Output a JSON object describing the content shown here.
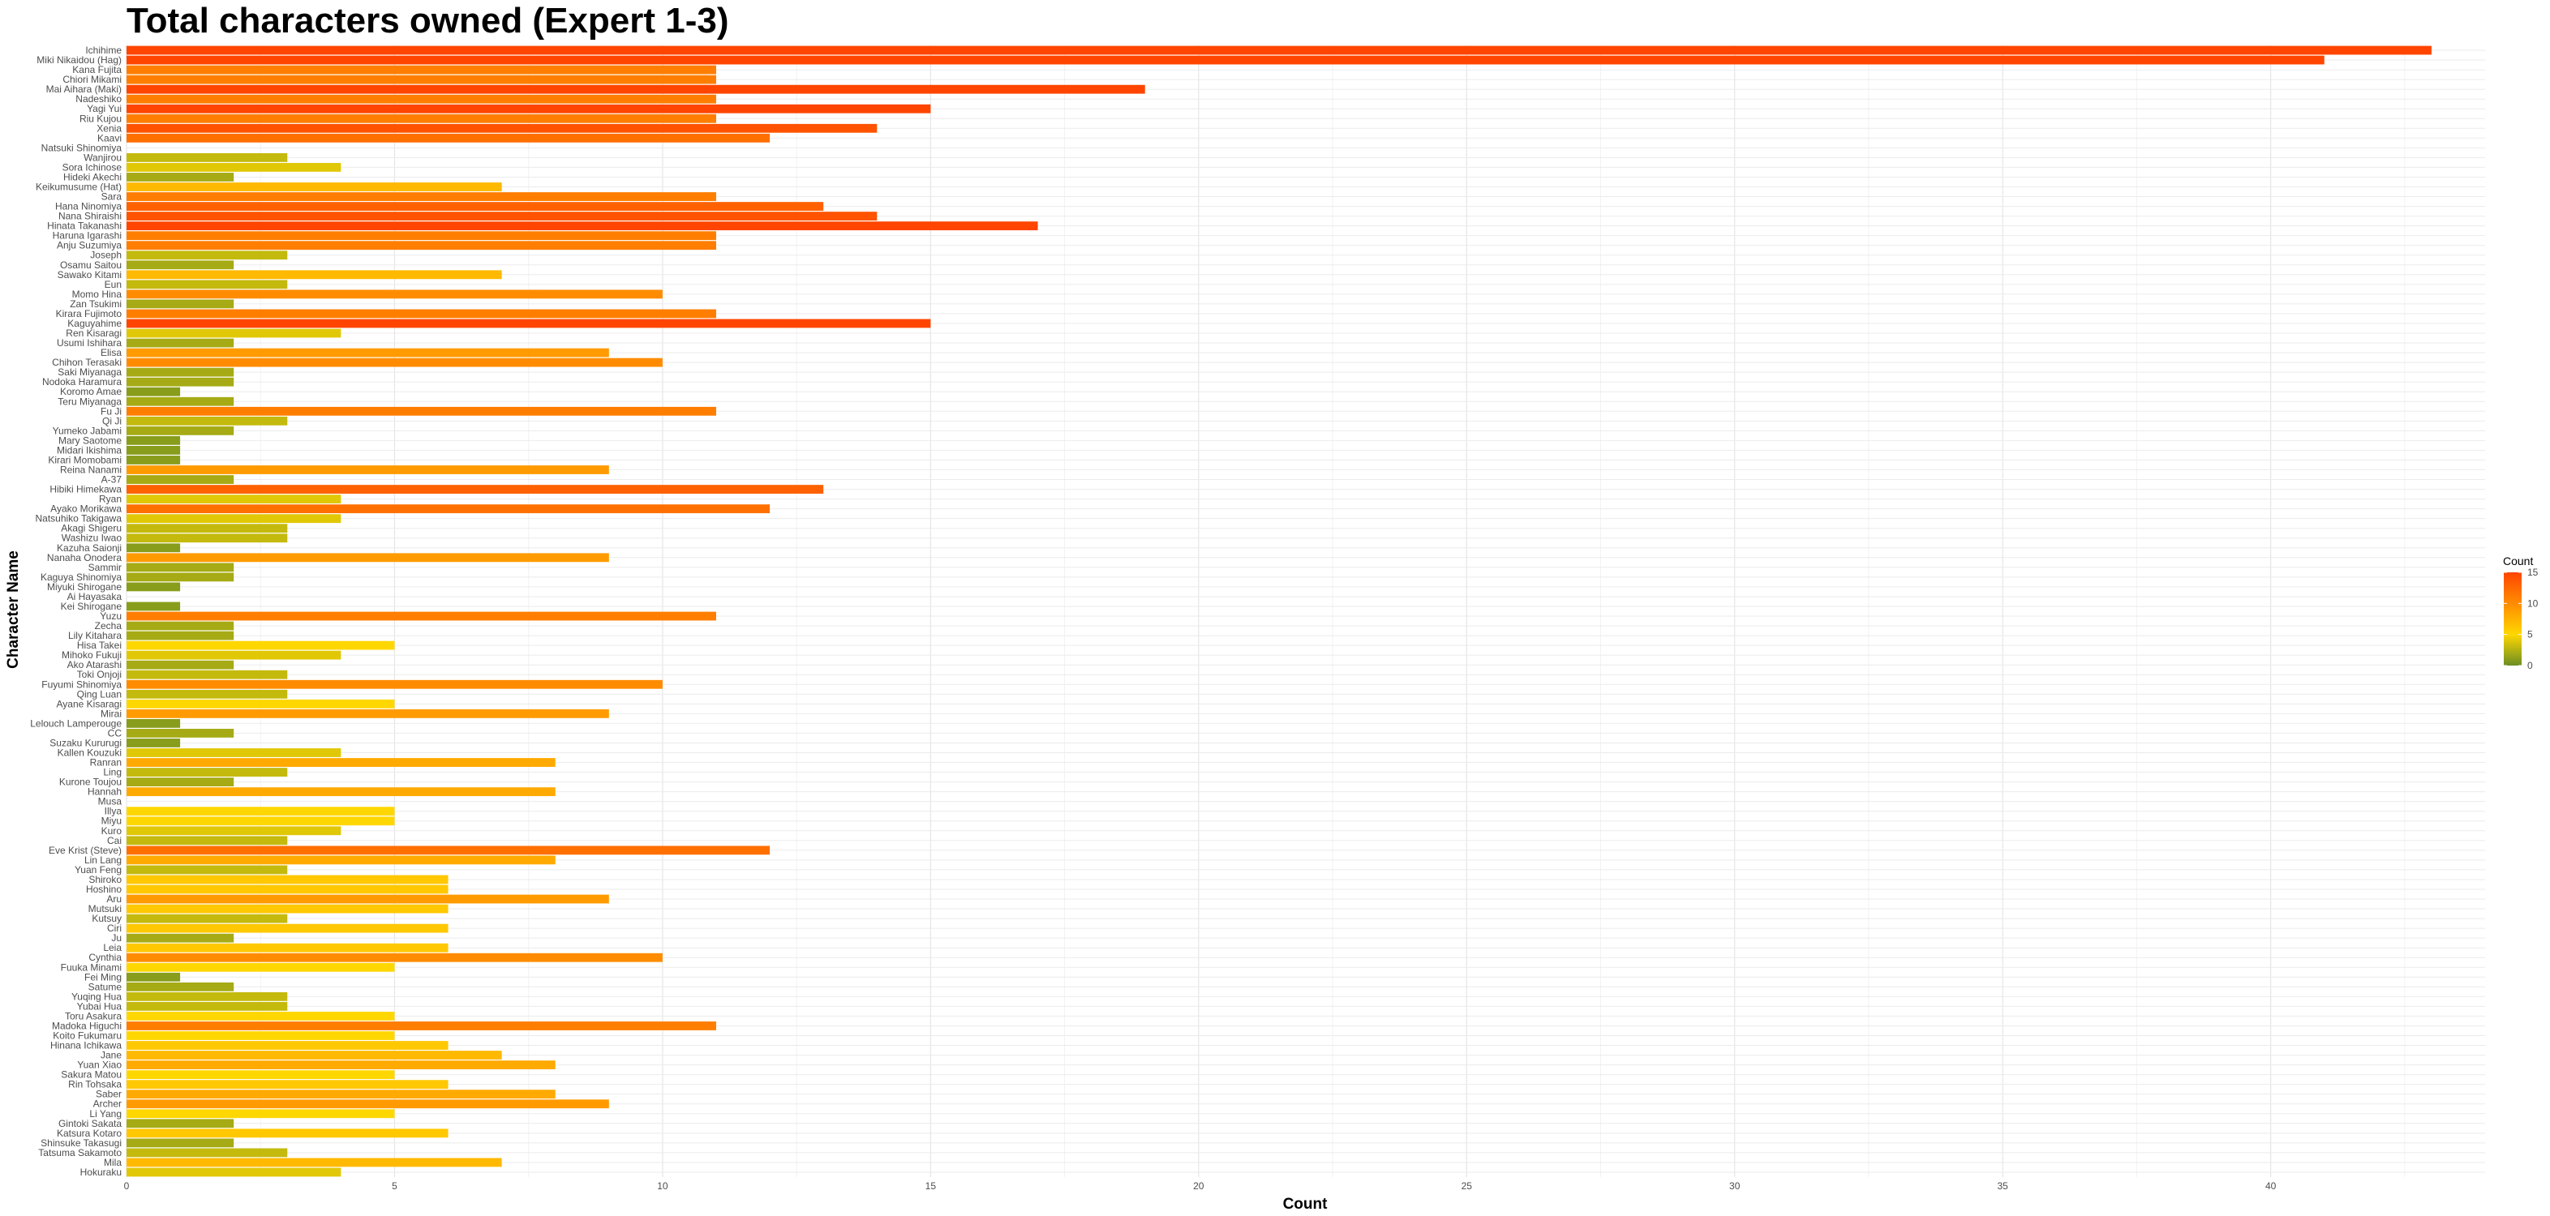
{
  "chart_data": {
    "type": "bar",
    "orientation": "horizontal",
    "title": "Total characters owned (Expert 1-3)",
    "xlabel": "Count",
    "ylabel": "Character Name",
    "xlim": [
      0,
      44
    ],
    "x_ticks": [
      0,
      5,
      10,
      15,
      20,
      25,
      30,
      35,
      40
    ],
    "grid": true,
    "legend": {
      "title": "Count",
      "placement": "right",
      "ticks": [
        0,
        5,
        10,
        15
      ],
      "colorscale": [
        "#6b8e23",
        "#ffd700",
        "#ff8c00",
        "#ff4500"
      ]
    },
    "categories": [
      "Ichihime",
      "Miki Nikaidou (Hag)",
      "Kana Fujita",
      "Chiori Mikami",
      "Mai Aihara (Maki)",
      "Nadeshiko",
      "Yagi Yui",
      "Riu Kujou",
      "Xenia",
      "Kaavi",
      "Natsuki Shinomiya",
      "Wanjirou",
      "Sora Ichinose",
      "Hideki Akechi",
      "Keikumusume (Hat)",
      "Sara",
      "Hana Ninomiya",
      "Nana Shiraishi",
      "Hinata Takanashi",
      "Haruna Igarashi",
      "Anju Suzumiya",
      "Joseph",
      "Osamu Saitou",
      "Sawako Kitami",
      "Eun",
      "Momo Hina",
      "Zan Tsukimi",
      "Kirara Fujimoto",
      "Kaguyahime",
      "Ren Kisaragi",
      "Usumi Ishihara",
      "Elisa",
      "Chihon Terasaki",
      "Saki Miyanaga",
      "Nodoka Haramura",
      "Koromo Amae",
      "Teru Miyanaga",
      "Fu Ji",
      "Qi Ji",
      "Yumeko Jabami",
      "Mary Saotome",
      "Midari Ikishima",
      "Kirari Momobami",
      "Reina Nanami",
      "A-37",
      "Hibiki Himekawa",
      "Ryan",
      "Ayako Morikawa",
      "Natsuhiko Takigawa",
      "Akagi Shigeru",
      "Washizu Iwao",
      "Kazuha Saionji",
      "Nanaha Onodera",
      "Sammir",
      "Kaguya Shinomiya",
      "Miyuki Shirogane",
      "Ai Hayasaka",
      "Kei Shirogane",
      "Yuzu",
      "Zecha",
      "Lily Kitahara",
      "Hisa Takei",
      "Mihoko Fukuji",
      "Ako Atarashi",
      "Toki Onjoji",
      "Fuyumi Shinomiya",
      "Qing Luan",
      "Ayane Kisaragi",
      "Mirai",
      "Lelouch Lamperouge",
      "CC",
      "Suzaku Kururugi",
      "Kallen Kouzuki",
      "Ranran",
      "Ling",
      "Kurone Toujou",
      "Hannah",
      "Musa",
      "Illya",
      "Miyu",
      "Kuro",
      "Cai",
      "Eve Krist (Steve)",
      "Lin Lang",
      "Yuan Feng",
      "Shiroko",
      "Hoshino",
      "Aru",
      "Mutsuki",
      "Kutsuy",
      "Ciri",
      "Ju",
      "Leia",
      "Cynthia",
      "Fuuka Minami",
      "Fei Ming",
      "Satume",
      "Yuqing Hua",
      "Yubai Hua",
      "Toru Asakura",
      "Madoka Higuchi",
      "Koito Fukumaru",
      "Hinana Ichikawa",
      "Jane",
      "Yuan Xiao",
      "Sakura Matou",
      "Rin Tohsaka",
      "Saber",
      "Archer",
      "Li Yang",
      "Gintoki Sakata",
      "Katsura Kotaro",
      "Shinsuke Takasugi",
      "Tatsuma Sakamoto",
      "Mila",
      "Hokuraku"
    ],
    "values": [
      43,
      41,
      11,
      11,
      19,
      11,
      15,
      11,
      14,
      12,
      0,
      3,
      4,
      2,
      7,
      11,
      13,
      14,
      17,
      11,
      11,
      3,
      2,
      7,
      3,
      10,
      2,
      11,
      15,
      4,
      2,
      9,
      10,
      2,
      2,
      1,
      2,
      11,
      3,
      2,
      1,
      1,
      1,
      9,
      2,
      13,
      4,
      12,
      4,
      3,
      3,
      1,
      9,
      2,
      2,
      1,
      0,
      1,
      11,
      2,
      2,
      5,
      4,
      2,
      3,
      10,
      3,
      5,
      9,
      1,
      2,
      1,
      4,
      8,
      3,
      2,
      8,
      0,
      5,
      5,
      4,
      3,
      12,
      8,
      3,
      6,
      6,
      9,
      6,
      3,
      6,
      2,
      6,
      10,
      5,
      1,
      2,
      3,
      3,
      5,
      11,
      5,
      6,
      7,
      8,
      5,
      6,
      8,
      9,
      5,
      2,
      6,
      2,
      3,
      7,
      4
    ]
  }
}
